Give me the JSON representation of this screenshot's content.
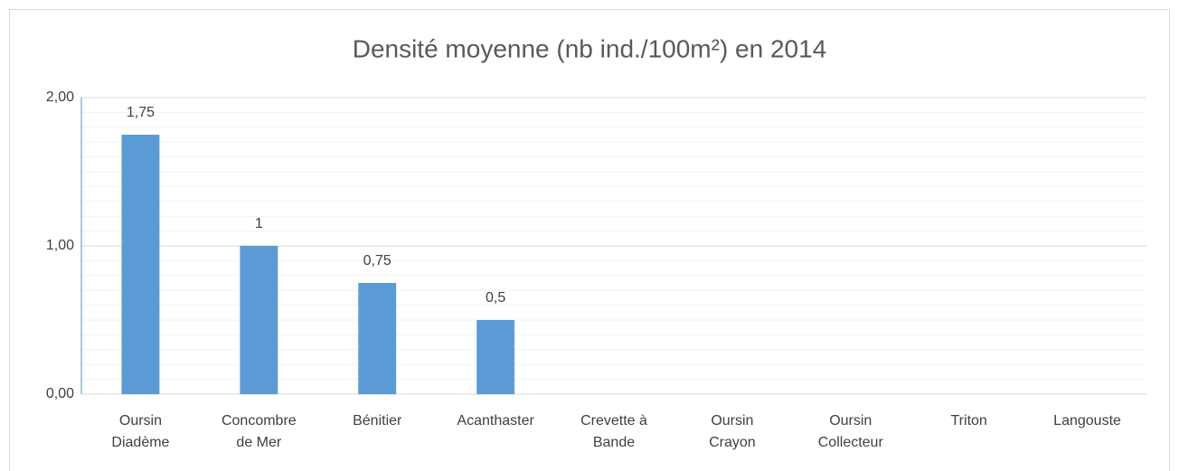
{
  "chart_data": {
    "type": "bar",
    "title": "Densité moyenne (nb ind./100m²) en 2014",
    "categories": [
      "Oursin Diadème",
      "Concombre de Mer",
      "Bénitier",
      "Acanthaster",
      "Crevette à Bande",
      "Oursin Crayon",
      "Oursin Collecteur",
      "Triton",
      "Langouste"
    ],
    "values": [
      1.75,
      1,
      0.75,
      0.5,
      0,
      0,
      0,
      0,
      0
    ],
    "value_labels": [
      "1,75",
      "1",
      "0,75",
      "0,5",
      null,
      null,
      null,
      null,
      null
    ],
    "color": "#5b9bd5",
    "ylim": [
      0,
      2
    ],
    "yticks": [
      {
        "value": 0,
        "label": "0,00"
      },
      {
        "value": 1,
        "label": "1,00"
      },
      {
        "value": 2,
        "label": "2,00"
      }
    ],
    "minor_grid_step": 0.1,
    "grid": true
  }
}
